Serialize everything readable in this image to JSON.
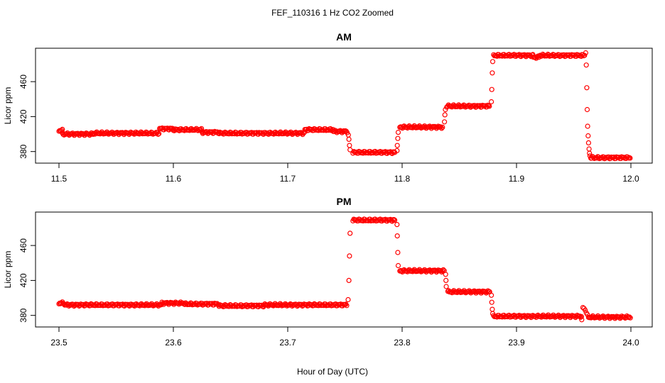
{
  "figure": {
    "title": "FEF_110316  1 Hz CO2 Zoomed",
    "xlabel": "Hour of Day (UTC)"
  },
  "colors": {
    "points": "#ff0000",
    "axis": "#000000"
  },
  "chart_data": [
    {
      "type": "scatter",
      "title": "AM",
      "xlabel": "",
      "ylabel": "Licor ppm",
      "xlim": [
        11.5,
        12.0
      ],
      "ylim": [
        370,
        495
      ],
      "xticks": [
        "11.5",
        "11.6",
        "11.7",
        "11.8",
        "11.9",
        "12.0"
      ],
      "yticks": [
        "380",
        "420",
        "460"
      ],
      "series": [
        {
          "marker": "open-circle",
          "segments": [
            {
              "x0": 11.5,
              "x1": 11.503,
              "y": 404
            },
            {
              "x0": 11.503,
              "x1": 11.53,
              "y": 400
            },
            {
              "x0": 11.53,
              "x1": 11.588,
              "y": 401
            },
            {
              "x0": 11.588,
              "x1": 11.6,
              "y": 406
            },
            {
              "x0": 11.6,
              "x1": 11.625,
              "y": 405
            },
            {
              "x0": 11.625,
              "x1": 11.64,
              "y": 402
            },
            {
              "x0": 11.64,
              "x1": 11.715,
              "y": 401
            },
            {
              "x0": 11.715,
              "x1": 11.74,
              "y": 405
            },
            {
              "x0": 11.74,
              "x1": 11.752,
              "y": 403
            },
            {
              "x0": 11.757,
              "x1": 11.794,
              "y": 379
            },
            {
              "x0": 11.798,
              "x1": 11.836,
              "y": 408
            },
            {
              "x0": 11.839,
              "x1": 11.877,
              "y": 432
            },
            {
              "x0": 11.88,
              "x1": 11.915,
              "y": 490
            },
            {
              "x0": 11.915,
              "x1": 11.92,
              "y": 488
            },
            {
              "x0": 11.92,
              "x1": 11.96,
              "y": 490
            },
            {
              "x0": 11.965,
              "x1": 12.0,
              "y": 373
            }
          ],
          "points": [
            {
              "x": 11.9605,
              "y": 493
            },
            {
              "x": 11.753,
              "y": 399
            },
            {
              "x": 11.7535,
              "y": 394
            },
            {
              "x": 11.754,
              "y": 387
            },
            {
              "x": 11.7545,
              "y": 382
            },
            {
              "x": 11.7955,
              "y": 381
            },
            {
              "x": 11.7958,
              "y": 387
            },
            {
              "x": 11.7962,
              "y": 395
            },
            {
              "x": 11.7966,
              "y": 402
            },
            {
              "x": 11.837,
              "y": 414
            },
            {
              "x": 11.8374,
              "y": 422
            },
            {
              "x": 11.8378,
              "y": 428
            },
            {
              "x": 11.878,
              "y": 437
            },
            {
              "x": 11.8784,
              "y": 451
            },
            {
              "x": 11.8788,
              "y": 470
            },
            {
              "x": 11.8792,
              "y": 483
            },
            {
              "x": 11.961,
              "y": 479
            },
            {
              "x": 11.9614,
              "y": 453
            },
            {
              "x": 11.9618,
              "y": 428
            },
            {
              "x": 11.9622,
              "y": 409
            },
            {
              "x": 11.9626,
              "y": 398
            },
            {
              "x": 11.963,
              "y": 390
            },
            {
              "x": 11.9634,
              "y": 383
            },
            {
              "x": 11.9638,
              "y": 378
            },
            {
              "x": 11.9642,
              "y": 375
            }
          ]
        }
      ]
    },
    {
      "type": "scatter",
      "title": "PM",
      "xlabel": "",
      "ylabel": "Licor ppm",
      "xlim": [
        23.5,
        24.0
      ],
      "ylim": [
        370,
        495
      ],
      "xticks": [
        "23.5",
        "23.6",
        "23.7",
        "23.8",
        "23.9",
        "24.0"
      ],
      "yticks": [
        "380",
        "420",
        "460"
      ],
      "series": [
        {
          "marker": "open-circle",
          "segments": [
            {
              "x0": 23.5,
              "x1": 23.505,
              "y": 394
            },
            {
              "x0": 23.505,
              "x1": 23.59,
              "y": 392
            },
            {
              "x0": 23.59,
              "x1": 23.61,
              "y": 394
            },
            {
              "x0": 23.61,
              "x1": 23.64,
              "y": 393
            },
            {
              "x0": 23.64,
              "x1": 23.68,
              "y": 391
            },
            {
              "x0": 23.68,
              "x1": 23.752,
              "y": 392
            },
            {
              "x0": 23.757,
              "x1": 23.794,
              "y": 489
            },
            {
              "x0": 23.798,
              "x1": 23.837,
              "y": 431
            },
            {
              "x0": 23.84,
              "x1": 23.877,
              "y": 407
            },
            {
              "x0": 23.88,
              "x1": 23.957,
              "y": 379
            },
            {
              "x0": 23.963,
              "x1": 24.0,
              "y": 378
            }
          ],
          "points": [
            {
              "x": 23.7528,
              "y": 398
            },
            {
              "x": 23.7535,
              "y": 420
            },
            {
              "x": 23.754,
              "y": 448
            },
            {
              "x": 23.7545,
              "y": 474
            },
            {
              "x": 23.7955,
              "y": 484
            },
            {
              "x": 23.7958,
              "y": 471
            },
            {
              "x": 23.7962,
              "y": 452
            },
            {
              "x": 23.7966,
              "y": 437
            },
            {
              "x": 23.838,
              "y": 427
            },
            {
              "x": 23.8383,
              "y": 420
            },
            {
              "x": 23.8386,
              "y": 413
            },
            {
              "x": 23.878,
              "y": 403
            },
            {
              "x": 23.8784,
              "y": 395
            },
            {
              "x": 23.8788,
              "y": 387
            },
            {
              "x": 23.8792,
              "y": 382
            },
            {
              "x": 23.957,
              "y": 375
            },
            {
              "x": 23.958,
              "y": 389
            },
            {
              "x": 23.959,
              "y": 388
            },
            {
              "x": 23.96,
              "y": 386
            },
            {
              "x": 23.961,
              "y": 383
            },
            {
              "x": 23.962,
              "y": 381
            }
          ]
        }
      ]
    }
  ]
}
